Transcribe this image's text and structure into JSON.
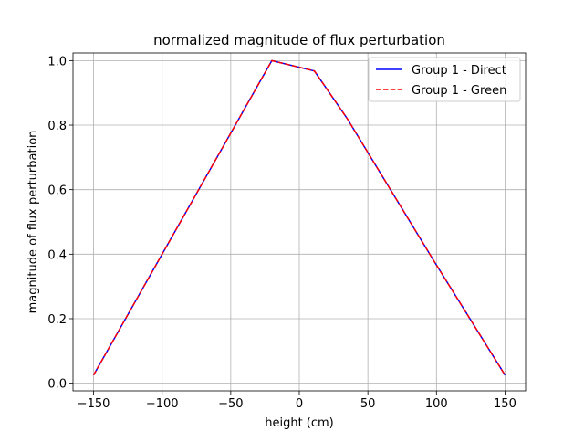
{
  "chart_data": {
    "type": "line",
    "title": "normalized magnitude of flux perturbation",
    "xlabel": "height (cm)",
    "ylabel": "magnitude of flux perturbation",
    "xlim": [
      -165,
      165
    ],
    "ylim": [
      -0.0237,
      1.0237
    ],
    "xticks": [
      -150,
      -100,
      -50,
      0,
      50,
      100,
      150
    ],
    "xtick_labels": [
      "−150",
      "−100",
      "−50",
      "0",
      "50",
      "100",
      "150"
    ],
    "yticks": [
      0.0,
      0.2,
      0.4,
      0.6,
      0.8,
      1.0
    ],
    "ytick_labels": [
      "0.0",
      "0.2",
      "0.4",
      "0.6",
      "0.8",
      "1.0"
    ],
    "grid": true,
    "legend_position": "top-right",
    "series": [
      {
        "name": "Group 1 - Direct",
        "color": "#0000ff",
        "style": "solid",
        "x": [
          -150,
          -20,
          11,
          35,
          98,
          150
        ],
        "y": [
          0.025,
          1.0,
          0.968,
          0.82,
          0.38,
          0.025
        ]
      },
      {
        "name": "Group 1 - Green",
        "color": "#ff0000",
        "style": "dashed",
        "x": [
          -150,
          -20,
          11,
          35,
          98,
          150
        ],
        "y": [
          0.025,
          1.0,
          0.968,
          0.82,
          0.38,
          0.025
        ]
      }
    ]
  }
}
